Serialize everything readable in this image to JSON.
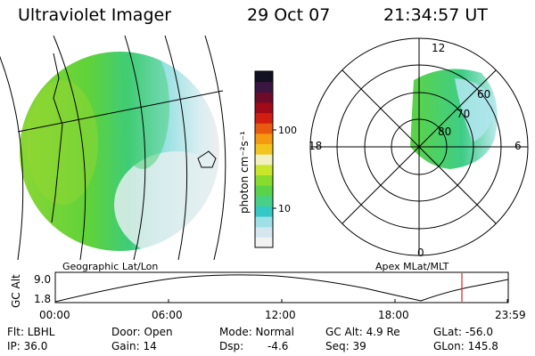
{
  "header": {
    "instrument": "Ultraviolet Imager",
    "date": "29 Oct 07",
    "time": "21:34:57 UT"
  },
  "colorbar": {
    "unit_label": "photon cm⁻²s⁻¹",
    "ticks": [
      "100",
      "10"
    ],
    "colors": [
      "#f2f2f2",
      "#d6e6ee",
      "#9ee0e6",
      "#35c9c6",
      "#48d086",
      "#59d449",
      "#88dc2c",
      "#c9e62a",
      "#f3f0c0",
      "#f2c51e",
      "#f59a10",
      "#e85a10",
      "#d21e10",
      "#a10a18",
      "#6e0a2a",
      "#3a1642",
      "#111122"
    ]
  },
  "polar_plot": {
    "rings": [
      "60",
      "70",
      "80"
    ],
    "clock": {
      "top": "12",
      "left": "18",
      "right": "6",
      "bottom": "0"
    }
  },
  "panel_labels": {
    "left": "Geographic Lat/Lon",
    "right": "Apex MLat/MLT"
  },
  "altitude_plot": {
    "axis_label": "GC Alt",
    "y_ticks": [
      "9.0",
      "1.8"
    ],
    "x_ticks": [
      "00:00",
      "06:00",
      "12:00",
      "18:00",
      "23:59"
    ],
    "marker_color": "#dd2222"
  },
  "info": {
    "flt": "Flt: LBHL",
    "door": "Door: Open",
    "mode": "Mode: Normal",
    "gcalt": "GC Alt: 4.9 Re",
    "glat": "GLat: -56.0",
    "ip": "IP: 36.0",
    "gain": "Gain: 14",
    "dsp_label": "Dsp:",
    "dsp_value": "-4.6",
    "seq": "Seq: 39",
    "glon": "GLon: 145.8"
  }
}
